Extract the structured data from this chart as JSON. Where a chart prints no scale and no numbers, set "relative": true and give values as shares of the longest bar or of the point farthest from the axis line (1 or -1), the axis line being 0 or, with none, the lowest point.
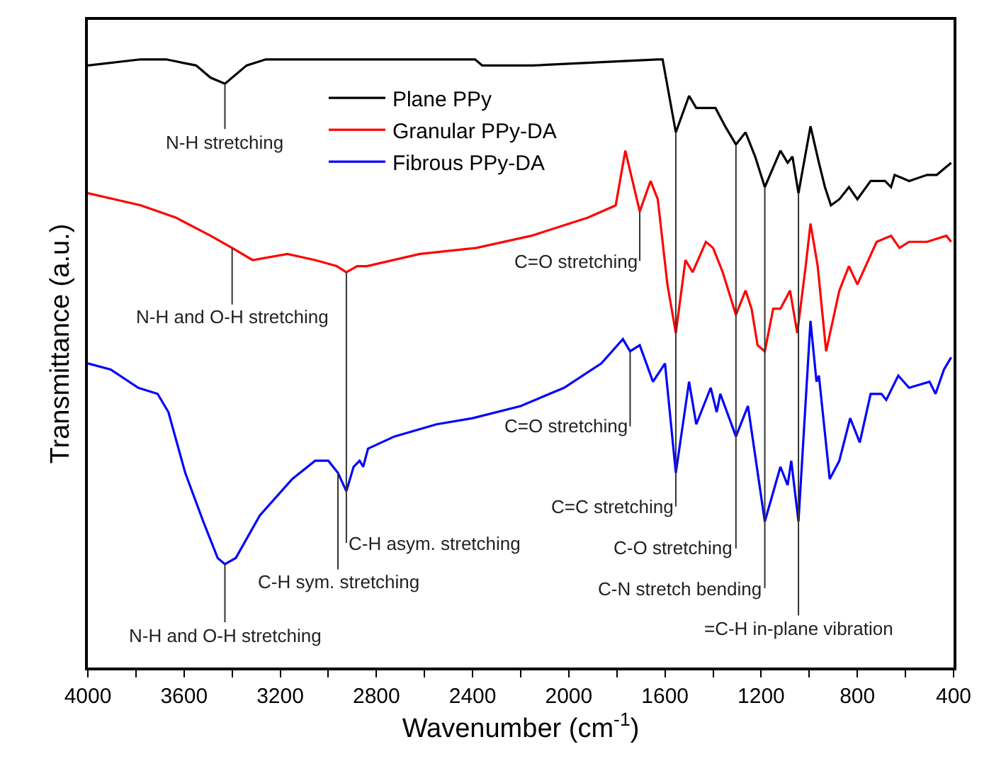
{
  "chart_data": {
    "type": "line",
    "relative": true,
    "xlabel": "Wavenumber (cm$^{-1}$)",
    "ylabel": "Transmittance (a.u.)",
    "xlim": [
      4000,
      400
    ],
    "xticks": [
      4000,
      {
        "value": 3800,
        "label": null
      },
      3600,
      {
        "value": 3400,
        "label": null
      },
      3200,
      {
        "value": 3000,
        "label": null
      },
      2800,
      {
        "value": 2600,
        "label": null
      },
      2400,
      {
        "value": 2200,
        "label": null
      },
      2000,
      {
        "value": 1800,
        "label": null
      },
      1600,
      {
        "value": 1400,
        "label": null
      },
      1200,
      {
        "value": 1000,
        "label": null
      },
      800,
      {
        "value": 600,
        "label": null
      },
      400
    ],
    "legend": "top",
    "line_style": "solid",
    "series": [
      {
        "name": "Plane PPy",
        "color": "#000000",
        "x": [
          4000,
          3780,
          3675,
          3550,
          3490,
          3430,
          3340,
          3260,
          3000,
          2620,
          2390,
          2360,
          2150,
          1630,
          1610,
          1555,
          1500,
          1470,
          1430,
          1390,
          1350,
          1305,
          1265,
          1225,
          1185,
          1120,
          1090,
          1070,
          1045,
          995,
          960,
          935,
          910,
          875,
          835,
          800,
          745,
          685,
          660,
          645,
          585,
          510,
          470,
          410
        ],
        "values": [
          0.99,
          1.0,
          1.0,
          0.99,
          0.97,
          0.96,
          0.99,
          1.0,
          1.0,
          1.0,
          1.0,
          0.99,
          0.99,
          1.0,
          1.0,
          0.88,
          0.94,
          0.92,
          0.92,
          0.92,
          0.89,
          0.86,
          0.88,
          0.84,
          0.79,
          0.85,
          0.83,
          0.84,
          0.78,
          0.89,
          0.83,
          0.79,
          0.76,
          0.77,
          0.79,
          0.77,
          0.8,
          0.8,
          0.79,
          0.81,
          0.8,
          0.81,
          0.81,
          0.83
        ]
      },
      {
        "name": "Granular PPy-DA",
        "color": "#ff0000",
        "x": [
          4000,
          3780,
          3635,
          3490,
          3400,
          3315,
          3170,
          3055,
          2965,
          2925,
          2880,
          2840,
          2620,
          2385,
          2155,
          1920,
          1805,
          1765,
          1705,
          1660,
          1630,
          1590,
          1555,
          1515,
          1485,
          1430,
          1400,
          1360,
          1305,
          1265,
          1240,
          1215,
          1185,
          1150,
          1120,
          1080,
          1050,
          1015,
          995,
          965,
          930,
          875,
          835,
          800,
          720,
          660,
          625,
          585,
          510,
          430,
          410
        ],
        "values": [
          0.78,
          0.76,
          0.74,
          0.71,
          0.69,
          0.67,
          0.68,
          0.67,
          0.66,
          0.65,
          0.66,
          0.66,
          0.68,
          0.69,
          0.71,
          0.74,
          0.76,
          0.85,
          0.75,
          0.8,
          0.77,
          0.63,
          0.55,
          0.67,
          0.65,
          0.7,
          0.69,
          0.65,
          0.58,
          0.62,
          0.59,
          0.53,
          0.52,
          0.59,
          0.59,
          0.62,
          0.55,
          0.66,
          0.73,
          0.66,
          0.52,
          0.62,
          0.66,
          0.63,
          0.7,
          0.71,
          0.69,
          0.7,
          0.7,
          0.71,
          0.7
        ]
      },
      {
        "name": "Fibrous PPy-DA",
        "color": "#0000ff",
        "x": [
          4000,
          3905,
          3790,
          3710,
          3665,
          3595,
          3520,
          3460,
          3430,
          3385,
          3285,
          3150,
          3055,
          3000,
          2960,
          2925,
          2895,
          2870,
          2855,
          2835,
          2725,
          2550,
          2400,
          2200,
          2020,
          1865,
          1775,
          1745,
          1705,
          1650,
          1600,
          1555,
          1500,
          1470,
          1410,
          1385,
          1370,
          1305,
          1255,
          1185,
          1120,
          1090,
          1075,
          1045,
          995,
          970,
          960,
          915,
          875,
          830,
          790,
          745,
          700,
          680,
          630,
          585,
          500,
          475,
          440,
          410
        ],
        "values": [
          0.5,
          0.49,
          0.46,
          0.45,
          0.42,
          0.32,
          0.24,
          0.18,
          0.17,
          0.18,
          0.25,
          0.31,
          0.34,
          0.34,
          0.32,
          0.29,
          0.33,
          0.34,
          0.33,
          0.36,
          0.38,
          0.4,
          0.41,
          0.43,
          0.46,
          0.5,
          0.54,
          0.52,
          0.53,
          0.47,
          0.5,
          0.32,
          0.47,
          0.4,
          0.46,
          0.42,
          0.45,
          0.38,
          0.43,
          0.24,
          0.33,
          0.3,
          0.34,
          0.24,
          0.57,
          0.47,
          0.48,
          0.31,
          0.34,
          0.41,
          0.37,
          0.45,
          0.45,
          0.44,
          0.48,
          0.46,
          0.47,
          0.45,
          0.49,
          0.51
        ]
      }
    ],
    "annotations": [
      {
        "text": "N-H stretching",
        "x": 3430,
        "y": 0.96
      },
      {
        "text": "N-H and O-H stretching",
        "x": 3400,
        "y": 0.69
      },
      {
        "text": "C-H asym. stretching",
        "x": 2925,
        "y": 0.65
      },
      {
        "text": "C-H sym. stretching",
        "x": 2960,
        "y": 0.32
      },
      {
        "text": "N-H and O-H stretching",
        "x": 3430,
        "y": 0.17
      },
      {
        "text": "C=O stretching",
        "x": 1705,
        "y": 0.75
      },
      {
        "text": "C=O stretching",
        "x": 1745,
        "y": 0.52
      },
      {
        "text": "C=C stretching",
        "x": 1555,
        "y": 0.88
      },
      {
        "text": "C-O stretching",
        "x": 1305,
        "y": 0.86
      },
      {
        "text": "C-N stretch bending",
        "x": 1185,
        "y": 0.79
      },
      {
        "text": "=C-H in-plane vibration",
        "x": 1045,
        "y": 0.78
      }
    ]
  }
}
